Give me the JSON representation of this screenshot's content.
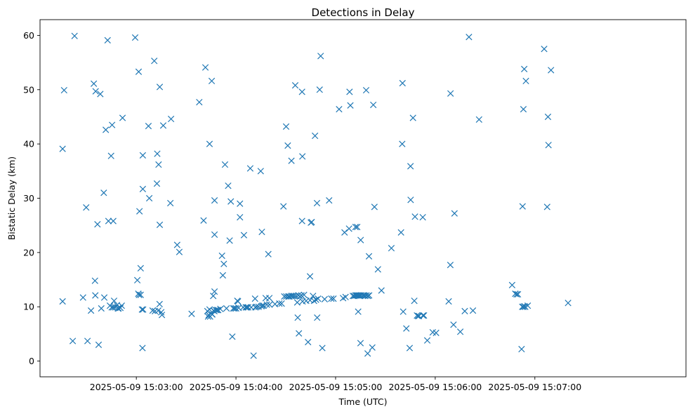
{
  "chart_data": {
    "type": "scatter",
    "title": "Detections in Delay",
    "xlabel": "Time (UTC)",
    "ylabel": "Bistatic Delay (km)",
    "xlim": [
      -58,
      331
    ],
    "ylim": [
      -2.9,
      62.9
    ],
    "x_ticks": [
      {
        "value": 0,
        "label": "2025-05-09 15:03:00"
      },
      {
        "value": 60,
        "label": "2025-05-09 15:04:00"
      },
      {
        "value": 120,
        "label": "2025-05-09 15:05:00"
      },
      {
        "value": 180,
        "label": "2025-05-09 15:06:00"
      },
      {
        "value": 240,
        "label": "2025-05-09 15:07:00"
      }
    ],
    "y_ticks": [
      0,
      10,
      20,
      30,
      40,
      50,
      60
    ],
    "marker": "x",
    "color": "#1f77b4",
    "points": [
      [
        -44.4,
        39.1
      ],
      [
        -44.4,
        11.0
      ],
      [
        -43.5,
        49.9
      ],
      [
        -38.3,
        3.7
      ],
      [
        -37.2,
        59.9
      ],
      [
        -32.1,
        11.7
      ],
      [
        -30.2,
        28.3
      ],
      [
        -29.4,
        3.7
      ],
      [
        -27.3,
        9.3
      ],
      [
        -25.6,
        51.1
      ],
      [
        -24.9,
        14.8
      ],
      [
        -24.7,
        12.1
      ],
      [
        -24.5,
        49.7
      ],
      [
        -23.4,
        25.2
      ],
      [
        -22.7,
        3.0
      ],
      [
        -21.7,
        49.2
      ],
      [
        -21.1,
        9.7
      ],
      [
        -19.6,
        31.0
      ],
      [
        -19.3,
        11.7
      ],
      [
        -18.4,
        42.6
      ],
      [
        -17.3,
        59.1
      ],
      [
        -16.8,
        25.8
      ],
      [
        -15.9,
        10.2
      ],
      [
        -15.2,
        37.8
      ],
      [
        -14.8,
        9.9
      ],
      [
        -14.6,
        43.5
      ],
      [
        -13.9,
        25.8
      ],
      [
        -13.9,
        9.9
      ],
      [
        -13.4,
        11.1
      ],
      [
        -12.8,
        9.9
      ],
      [
        -11.7,
        10.3
      ],
      [
        -11.1,
        9.7
      ],
      [
        -10.7,
        9.7
      ],
      [
        -9.6,
        9.8
      ],
      [
        -8.8,
        10.2
      ],
      [
        -8.3,
        44.8
      ],
      [
        -0.7,
        59.6
      ],
      [
        0.6,
        14.9
      ],
      [
        1.2,
        12.4
      ],
      [
        1.4,
        53.3
      ],
      [
        1.6,
        12.2
      ],
      [
        1.9,
        27.6
      ],
      [
        2.6,
        17.1
      ],
      [
        2.6,
        12.2
      ],
      [
        3.4,
        9.5
      ],
      [
        3.7,
        2.4
      ],
      [
        3.9,
        37.9
      ],
      [
        3.9,
        31.7
      ],
      [
        4.1,
        9.5
      ],
      [
        7.3,
        43.3
      ],
      [
        7.8,
        30.0
      ],
      [
        9.8,
        9.3
      ],
      [
        10.8,
        55.3
      ],
      [
        11.2,
        9.2
      ],
      [
        12.4,
        32.7
      ],
      [
        12.6,
        38.2
      ],
      [
        13.2,
        9.3
      ],
      [
        13.4,
        36.2
      ],
      [
        14.0,
        10.5
      ],
      [
        14.1,
        50.5
      ],
      [
        14.1,
        25.1
      ],
      [
        15.0,
        9.0
      ],
      [
        15.4,
        8.5
      ],
      [
        16.2,
        43.4
      ],
      [
        20.5,
        29.1
      ],
      [
        20.9,
        44.6
      ],
      [
        24.6,
        21.4
      ],
      [
        25.9,
        20.1
      ],
      [
        33.3,
        8.7
      ],
      [
        37.9,
        47.7
      ],
      [
        40.5,
        25.9
      ],
      [
        41.6,
        54.1
      ],
      [
        42.8,
        9.2
      ],
      [
        43.2,
        8.2
      ],
      [
        43.6,
        8.5
      ],
      [
        44.1,
        40.0
      ],
      [
        44.1,
        9.5
      ],
      [
        44.4,
        8.2
      ],
      [
        45.4,
        51.6
      ],
      [
        45.6,
        8.6
      ],
      [
        45.8,
        8.6
      ],
      [
        46.3,
        12.0
      ],
      [
        46.5,
        9.3
      ],
      [
        47.0,
        9.2
      ],
      [
        47.1,
        29.6
      ],
      [
        47.1,
        12.8
      ],
      [
        47.1,
        23.3
      ],
      [
        47.8,
        9.4
      ],
      [
        48.6,
        9.4
      ],
      [
        49.3,
        9.4
      ],
      [
        50.6,
        9.6
      ],
      [
        51.6,
        19.4
      ],
      [
        52.1,
        15.8
      ],
      [
        52.7,
        17.9
      ],
      [
        53.4,
        36.2
      ],
      [
        54.3,
        9.7
      ],
      [
        55.3,
        32.3
      ],
      [
        56.2,
        22.2
      ],
      [
        56.9,
        29.4
      ],
      [
        57.8,
        4.5
      ],
      [
        58.4,
        9.7
      ],
      [
        59.2,
        9.7
      ],
      [
        60.1,
        9.7
      ],
      [
        60.8,
        11.1
      ],
      [
        61.2,
        11.0
      ],
      [
        61.6,
        9.8
      ],
      [
        62.4,
        29.0
      ],
      [
        62.4,
        26.5
      ],
      [
        64.3,
        9.9
      ],
      [
        64.8,
        23.2
      ],
      [
        65.9,
        9.9
      ],
      [
        66.6,
        9.9
      ],
      [
        67.3,
        9.9
      ],
      [
        68.6,
        35.5
      ],
      [
        69.2,
        9.9
      ],
      [
        70.6,
        1.0
      ],
      [
        71.5,
        11.5
      ],
      [
        71.7,
        9.9
      ],
      [
        72.4,
        10.0
      ],
      [
        73.6,
        10.0
      ],
      [
        74.9,
        35.0
      ],
      [
        75.3,
        10.1
      ],
      [
        75.9,
        10.2
      ],
      [
        75.6,
        23.8
      ],
      [
        76.7,
        10.2
      ],
      [
        77.9,
        11.6
      ],
      [
        78.6,
        10.4
      ],
      [
        79.5,
        19.7
      ],
      [
        80.1,
        11.6
      ],
      [
        80.2,
        10.4
      ],
      [
        83.5,
        10.5
      ],
      [
        86.1,
        10.6
      ],
      [
        87.5,
        10.6
      ],
      [
        88.6,
        28.5
      ],
      [
        89.1,
        11.9
      ],
      [
        90.2,
        43.2
      ],
      [
        90.3,
        11.9
      ],
      [
        91.2,
        39.7
      ],
      [
        91.5,
        11.9
      ],
      [
        92.2,
        11.9
      ],
      [
        93.3,
        12.0
      ],
      [
        93.4,
        36.9
      ],
      [
        94.1,
        12.0
      ],
      [
        95.1,
        12.0
      ],
      [
        95.7,
        50.8
      ],
      [
        96.2,
        12.0
      ],
      [
        96.9,
        10.8
      ],
      [
        97.2,
        8.0
      ],
      [
        97.6,
        12.1
      ],
      [
        97.9,
        5.1
      ],
      [
        98.5,
        11.9
      ],
      [
        99.4,
        12.1
      ],
      [
        99.8,
        49.6
      ],
      [
        100.0,
        37.7
      ],
      [
        99.8,
        25.8
      ],
      [
        100.1,
        11.0
      ],
      [
        101.0,
        12.2
      ],
      [
        102.3,
        11.1
      ],
      [
        103.4,
        3.5
      ],
      [
        104.6,
        15.6
      ],
      [
        104.6,
        11.2
      ],
      [
        105.1,
        25.5
      ],
      [
        105.6,
        25.6
      ],
      [
        106.4,
        12.0
      ],
      [
        107.0,
        11.1
      ],
      [
        107.6,
        41.5
      ],
      [
        108.2,
        11.3
      ],
      [
        108.8,
        29.1
      ],
      [
        108.9,
        8.0
      ],
      [
        109.4,
        11.5
      ],
      [
        110.4,
        50.0
      ],
      [
        111.0,
        56.2
      ],
      [
        112.0,
        2.4
      ],
      [
        113.4,
        11.4
      ],
      [
        116.1,
        29.6
      ],
      [
        117.4,
        11.5
      ],
      [
        118.7,
        11.5
      ],
      [
        122.1,
        46.4
      ],
      [
        124.5,
        11.6
      ],
      [
        125.4,
        23.7
      ],
      [
        126.0,
        11.8
      ],
      [
        128.1,
        24.4
      ],
      [
        128.4,
        49.6
      ],
      [
        128.9,
        47.1
      ],
      [
        130.4,
        12.0
      ],
      [
        131.2,
        12.0
      ],
      [
        132.0,
        24.7
      ],
      [
        132.0,
        12.1
      ],
      [
        132.6,
        12.1
      ],
      [
        133.0,
        24.7
      ],
      [
        133.2,
        12.1
      ],
      [
        133.6,
        9.1
      ],
      [
        133.9,
        12.1
      ],
      [
        134.4,
        12.0
      ],
      [
        134.6,
        12.1
      ],
      [
        135.0,
        3.3
      ],
      [
        135.1,
        22.3
      ],
      [
        135.4,
        12.1
      ],
      [
        136.5,
        12.1
      ],
      [
        137.2,
        12.1
      ],
      [
        137.8,
        12.0
      ],
      [
        138.4,
        49.9
      ],
      [
        138.6,
        12.1
      ],
      [
        139.3,
        1.4
      ],
      [
        139.5,
        12.0
      ],
      [
        140.1,
        19.3
      ],
      [
        140.2,
        12.1
      ],
      [
        142.1,
        2.5
      ],
      [
        142.7,
        47.2
      ],
      [
        143.4,
        28.4
      ],
      [
        145.5,
        16.9
      ],
      [
        147.6,
        13.0
      ],
      [
        153.6,
        20.8
      ],
      [
        159.4,
        23.7
      ],
      [
        160.3,
        51.2
      ],
      [
        160.1,
        40.0
      ],
      [
        160.7,
        9.1
      ],
      [
        162.6,
        6.0
      ],
      [
        164.6,
        2.4
      ],
      [
        165.1,
        35.9
      ],
      [
        165.2,
        29.7
      ],
      [
        166.6,
        44.8
      ],
      [
        167.4,
        11.1
      ],
      [
        167.8,
        26.6
      ],
      [
        169.0,
        8.4
      ],
      [
        169.6,
        8.3
      ],
      [
        170.2,
        8.3
      ],
      [
        172.5,
        26.5
      ],
      [
        172.6,
        8.4
      ],
      [
        173.2,
        8.4
      ],
      [
        175.2,
        3.8
      ],
      [
        178.5,
        5.3
      ],
      [
        180.5,
        5.2
      ],
      [
        188.1,
        11.0
      ],
      [
        189.2,
        49.3
      ],
      [
        189.1,
        17.7
      ],
      [
        191.0,
        6.7
      ],
      [
        191.6,
        27.2
      ],
      [
        195.1,
        5.4
      ],
      [
        197.8,
        9.2
      ],
      [
        200.3,
        59.7
      ],
      [
        202.7,
        9.3
      ],
      [
        206.4,
        44.5
      ],
      [
        226.3,
        14.0
      ],
      [
        228.2,
        12.4
      ],
      [
        229.0,
        12.3
      ],
      [
        229.8,
        12.3
      ],
      [
        232.0,
        2.2
      ],
      [
        232.4,
        10.0
      ],
      [
        232.6,
        28.5
      ],
      [
        233.1,
        46.4
      ],
      [
        233.1,
        10.0
      ],
      [
        233.6,
        53.8
      ],
      [
        233.7,
        10.1
      ],
      [
        234.2,
        10.0
      ],
      [
        234.6,
        51.6
      ],
      [
        235.7,
        10.2
      ],
      [
        245.6,
        57.5
      ],
      [
        247.4,
        28.4
      ],
      [
        247.9,
        45.0
      ],
      [
        248.2,
        39.8
      ],
      [
        249.7,
        53.6
      ],
      [
        260.0,
        10.7
      ]
    ]
  }
}
